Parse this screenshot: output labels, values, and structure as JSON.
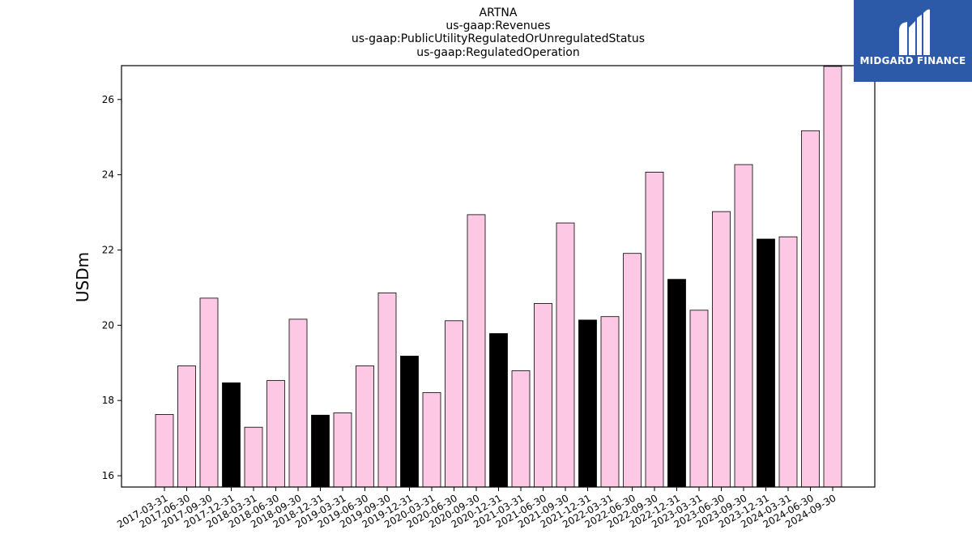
{
  "chart_data": {
    "type": "bar",
    "title_lines": [
      "ARTNA",
      "us-gaap:Revenues",
      "us-gaap:PublicUtilityRegulatedOrUnregulatedStatus",
      "us-gaap:RegulatedOperation"
    ],
    "ylabel": "USDm",
    "xlabel": "",
    "ylim": [
      15.7,
      26.9
    ],
    "yticks": [
      16,
      18,
      20,
      22,
      24,
      26
    ],
    "categories": [
      "2017-03-31",
      "2017-06-30",
      "2017-09-30",
      "2017-12-31",
      "2018-03-31",
      "2018-06-30",
      "2018-09-30",
      "2018-12-31",
      "2019-03-31",
      "2019-06-30",
      "2019-09-30",
      "2019-12-31",
      "2020-03-31",
      "2020-06-30",
      "2020-09-30",
      "2020-12-31",
      "2021-03-31",
      "2021-06-30",
      "2021-09-30",
      "2021-12-31",
      "2022-03-31",
      "2022-06-30",
      "2022-09-30",
      "2022-12-31",
      "2023-03-31",
      "2023-06-30",
      "2023-09-30",
      "2023-12-31",
      "2024-03-31",
      "2024-06-30",
      "2024-09-30"
    ],
    "values": [
      17.63,
      18.92,
      20.72,
      18.47,
      17.29,
      18.53,
      20.16,
      17.61,
      17.67,
      18.92,
      20.86,
      19.18,
      18.21,
      20.12,
      22.94,
      19.78,
      18.79,
      20.58,
      22.72,
      20.14,
      20.23,
      21.91,
      24.07,
      21.22,
      20.4,
      23.02,
      24.27,
      22.29,
      22.35,
      25.17,
      26.88
    ],
    "highlight_quarters": [
      "2017-12-31",
      "2018-12-31",
      "2019-12-31",
      "2020-12-31",
      "2021-12-31",
      "2022-12-31",
      "2023-12-31"
    ],
    "colors": {
      "bar": "#fcc8e4",
      "highlight": "#000000",
      "edge": "#000000"
    }
  },
  "logo": {
    "text": "MIDGARD FINANCE",
    "background": "#2d5aa8"
  }
}
